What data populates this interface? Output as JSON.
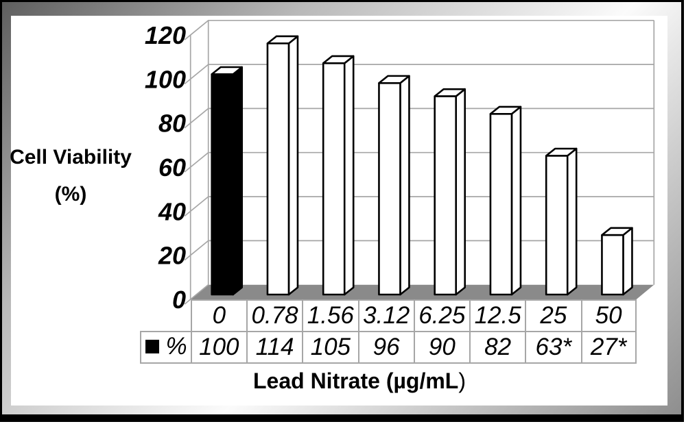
{
  "chart_data": {
    "type": "bar",
    "title": "",
    "ylabel_lines": [
      "Cell Viability",
      "(%)"
    ],
    "xlabel": "Lead Nitrate (µg/mL)",
    "categories": [
      "0",
      "0.78",
      "1.56",
      "3.12",
      "6.25",
      "12.5",
      "25",
      "50"
    ],
    "series": [
      {
        "name": "%",
        "values": [
          100,
          114,
          105,
          96,
          90,
          82,
          63,
          27
        ],
        "labels": [
          "100",
          "114",
          "105",
          "96",
          "90",
          "82",
          "63*",
          "27*"
        ]
      }
    ],
    "yticks": [
      0,
      20,
      40,
      60,
      80,
      100,
      120
    ],
    "ylim": [
      0,
      120
    ],
    "grid": true,
    "legend": "table-row-marker",
    "bar_fills": [
      "#000000",
      "#ffffff",
      "#ffffff",
      "#ffffff",
      "#ffffff",
      "#ffffff",
      "#ffffff",
      "#ffffff"
    ],
    "colors": {
      "floor": "#8a8a8a",
      "gridline": "#a6a6a6",
      "bar_outline": "#000000",
      "bar_top_face": "#ffffff",
      "text": "#000000"
    }
  }
}
